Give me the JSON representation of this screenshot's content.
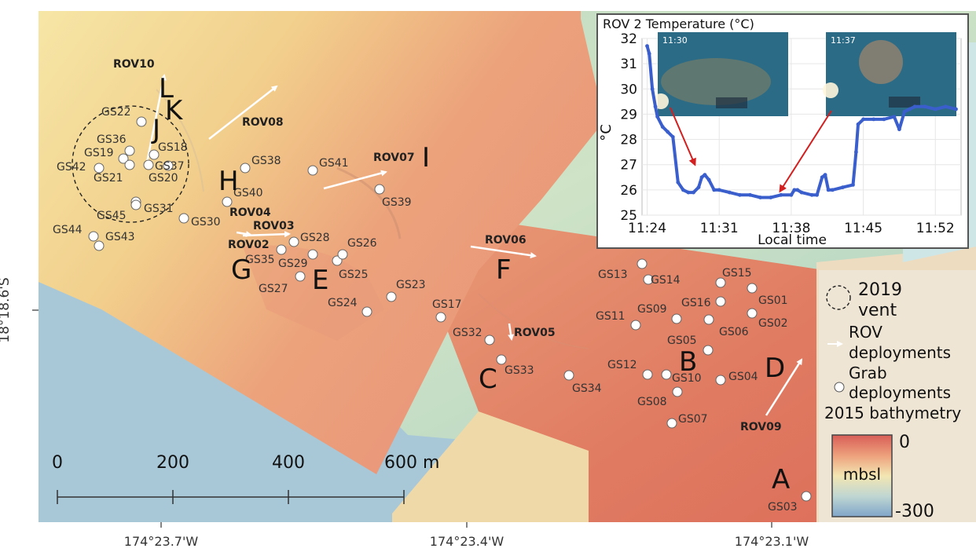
{
  "map": {
    "longitude_ticks": [
      "174°23.7'W",
      "174°23.4'W",
      "174°23.1'W"
    ],
    "latitude_label": "18°18.6'S",
    "scale_bar": {
      "labels": [
        "0",
        "200",
        "400",
        "600 m"
      ]
    },
    "grab_samples": [
      "GS01",
      "GS02",
      "GS03",
      "GS04",
      "GS05",
      "GS06",
      "GS07",
      "GS08",
      "GS09",
      "GS10",
      "GS11",
      "GS12",
      "GS13",
      "GS14",
      "GS15",
      "GS16",
      "GS17",
      "GS18",
      "GS19",
      "GS20",
      "GS21",
      "GS22",
      "GS23",
      "GS24",
      "GS25",
      "GS26",
      "GS27",
      "GS28",
      "GS29",
      "GS30",
      "GS31",
      "GS32",
      "GS33",
      "GS34",
      "GS35",
      "GS36",
      "GS37",
      "GS38",
      "GS39",
      "GS40",
      "GS41",
      "GS42",
      "GS43",
      "GS44",
      "GS45"
    ],
    "rov_deployments": [
      "ROV02",
      "ROV03",
      "ROV04",
      "ROV05",
      "ROV06",
      "ROV07",
      "ROV08",
      "ROV09",
      "ROV10"
    ],
    "site_letters": [
      "A",
      "B",
      "C",
      "D",
      "E",
      "F",
      "G",
      "H",
      "I",
      "J",
      "K",
      "L"
    ]
  },
  "legend": {
    "vent_label_1": "2019",
    "vent_label_2": "vent",
    "rov_label_1": "ROV",
    "rov_label_2": "deployments",
    "grab_label_1": "Grab",
    "grab_label_2": "deployments",
    "bathymetry_title": "2015 bathymetry",
    "scale_top": "0",
    "scale_unit": "mbsl",
    "scale_bottom": "-300"
  },
  "inset": {
    "title": "ROV 2 Temperature (°C)",
    "ylabel": "°C",
    "xlabel": "Local time",
    "photo_1_time": "11:30",
    "photo_2_time": "11:37"
  },
  "chart_data": {
    "type": "line",
    "title": "ROV 2 Temperature (°C)",
    "xlabel": "Local time",
    "ylabel": "°C",
    "x_ticks": [
      "11:24",
      "11:31",
      "11:38",
      "11:45",
      "11:52"
    ],
    "y_ticks": [
      25,
      26,
      27,
      28,
      29,
      30,
      31,
      32
    ],
    "ylim": [
      25,
      32
    ],
    "xlim_minutes": [
      23.5,
      54.5
    ],
    "series": [
      {
        "color": "#3a5fcd",
        "x_minutes": [
          24.0,
          24.2,
          24.5,
          24.8,
          25.0,
          25.5,
          26.0,
          26.5,
          27.0,
          27.5,
          28.0,
          28.5,
          29.0,
          29.3,
          29.6,
          30.0,
          30.5,
          31.0,
          32.0,
          33.0,
          34.0,
          35.0,
          36.0,
          37.0,
          38.0,
          38.3,
          38.6,
          39.0,
          40.0,
          40.5,
          41.0,
          41.3,
          41.6,
          42.0,
          43.0,
          44.0,
          44.3,
          44.5,
          45.0,
          46.0,
          47.0,
          48.0,
          48.5,
          49.0,
          49.5,
          50.0,
          51.0,
          52.0,
          53.0,
          54.0
        ],
        "values": [
          31.7,
          31.4,
          30.0,
          29.3,
          28.9,
          28.5,
          28.3,
          28.1,
          26.3,
          26.0,
          25.9,
          25.9,
          26.1,
          26.5,
          26.6,
          26.4,
          26.0,
          26.0,
          25.9,
          25.8,
          25.8,
          25.7,
          25.7,
          25.8,
          25.8,
          26.0,
          26.0,
          25.9,
          25.8,
          25.8,
          26.5,
          26.6,
          26.0,
          26.0,
          26.1,
          26.2,
          27.5,
          28.6,
          28.8,
          28.8,
          28.8,
          28.9,
          28.4,
          29.1,
          29.2,
          29.3,
          29.3,
          29.2,
          29.3,
          29.2
        ]
      }
    ]
  }
}
